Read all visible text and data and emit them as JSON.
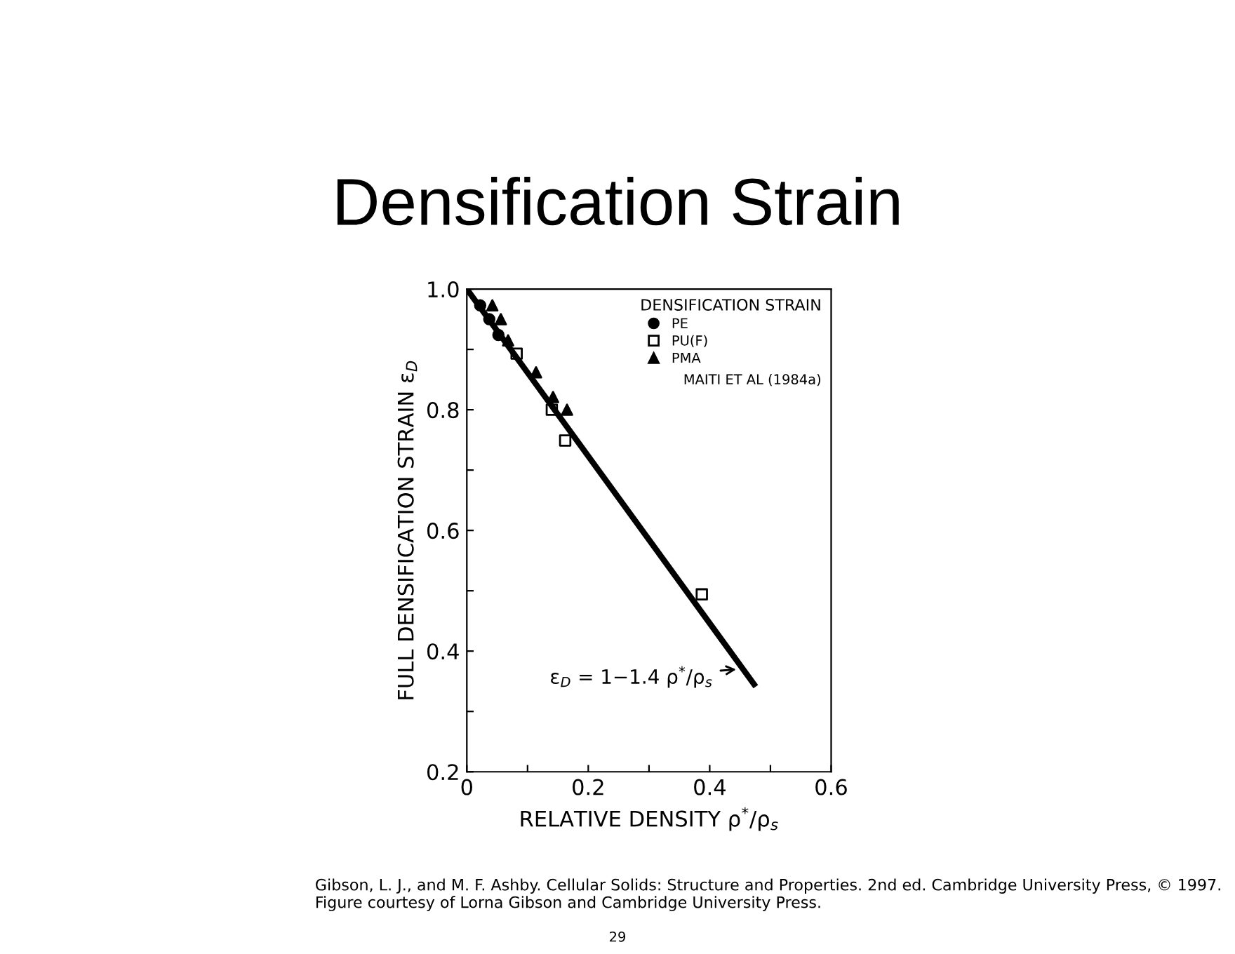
{
  "chart_data": {
    "type": "scatter",
    "title": "Densification Strain",
    "xlabel": "RELATIVE DENSITY ρ$^{*}$/ρ$_{s}$",
    "ylabel": "FULL DENSIFICATION STRAIN ε$_{D}$",
    "legend_title": "DENSIFICATION STRAIN",
    "legend": "top right",
    "grid": false,
    "xlim": [
      0,
      0.6
    ],
    "ylim": [
      0.2,
      1.0
    ],
    "xticks": [
      0,
      {
        "value": 0.1,
        "label": null
      },
      0.2,
      {
        "value": 0.3,
        "label": null
      },
      0.4,
      {
        "value": 0.5,
        "label": null
      },
      0.6
    ],
    "yticks": [
      0.2,
      {
        "value": 0.3,
        "label": null
      },
      0.4,
      {
        "value": 0.5,
        "label": null
      },
      0.6,
      {
        "value": 0.7,
        "label": null
      },
      0.8,
      {
        "value": 0.9,
        "label": null
      },
      {
        "value": 1.0,
        "label": "1.0"
      }
    ],
    "series": [
      {
        "name": "PE",
        "color": "#000000",
        "marker": "circle",
        "x": [
          0.022,
          0.037,
          0.052
        ],
        "values": [
          0.973,
          0.95,
          0.924
        ]
      },
      {
        "name": "PU(F)",
        "color": "#000000",
        "marker": "square",
        "x": [
          0.082,
          0.14,
          0.162,
          0.387
        ],
        "values": [
          0.893,
          0.8,
          0.749,
          0.494
        ]
      },
      {
        "name": "PMA",
        "color": "#000000",
        "marker": "triangle",
        "x": [
          0.042,
          0.056,
          0.068,
          0.114,
          0.142,
          0.165
        ],
        "values": [
          0.973,
          0.95,
          0.915,
          0.862,
          0.821,
          0.8
        ]
      },
      {
        "type": "line",
        "color": "#000000",
        "marker": "none",
        "x": [
          0,
          0.473
        ],
        "values": [
          1.0,
          0.345
        ]
      }
    ],
    "annotations": [
      "MAITI ET AL (1984a)",
      {
        "text": "ε$_{D}$ = 1−1.4 ρ$^{*}$/ρ$_{s}$",
        "x": 0.45,
        "y": 0.37
      },
      "Gibson, L. J., and M. F. Ashby. Cellular Solids: Structure and Properties. 2nd ed. Cambridge University Press, © 1997. Figure courtesy of Lorna Gibson and Cambridge University Press.",
      "29"
    ]
  }
}
